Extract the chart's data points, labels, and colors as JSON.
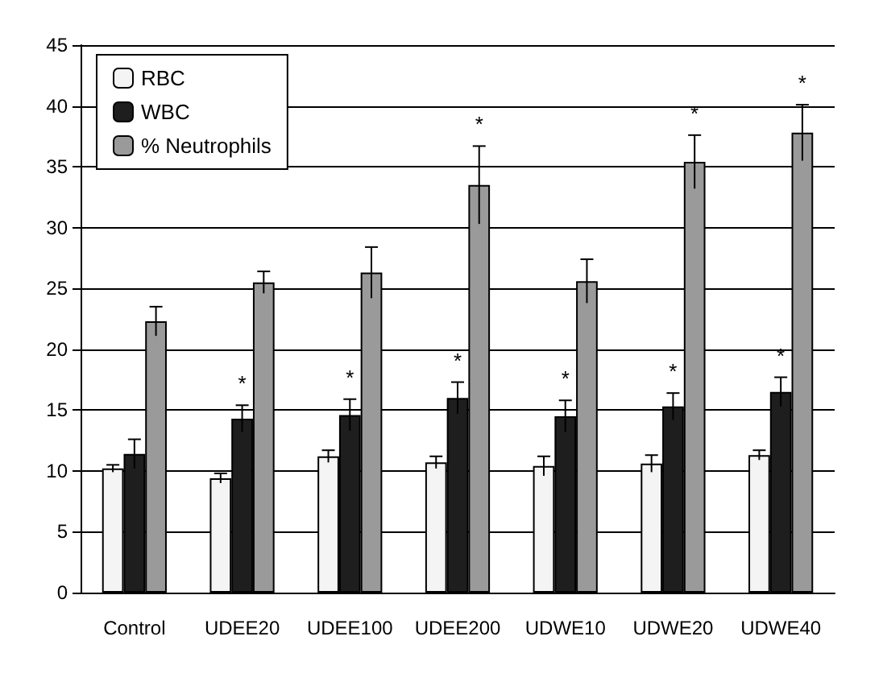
{
  "chart_data": {
    "type": "bar",
    "categories": [
      "Control",
      "UDEE20",
      "UDEE100",
      "UDEE200",
      "UDWE10",
      "UDWE20",
      "UDWE40"
    ],
    "series": [
      {
        "name": "RBC",
        "color": "#f4f4f4",
        "values": [
          10.2,
          9.4,
          11.2,
          10.7,
          10.4,
          10.6,
          11.3
        ],
        "errors": [
          0.3,
          0.4,
          0.5,
          0.5,
          0.8,
          0.7,
          0.4
        ]
      },
      {
        "name": "WBC",
        "color": "#1e1e1e",
        "values": [
          11.4,
          14.3,
          14.6,
          16.0,
          14.5,
          15.3,
          16.5
        ],
        "errors": [
          1.2,
          1.1,
          1.3,
          1.3,
          1.3,
          1.1,
          1.2
        ],
        "value_labels": [
          null,
          "*",
          "*",
          "*",
          "*",
          "*",
          "*"
        ]
      },
      {
        "name": "% Neutrophils",
        "color": "#9a9a9a",
        "values": [
          22.3,
          25.5,
          26.3,
          33.5,
          25.6,
          35.4,
          37.8
        ],
        "errors": [
          1.2,
          0.9,
          2.1,
          3.2,
          1.8,
          2.2,
          2.3
        ],
        "value_labels": [
          null,
          null,
          null,
          "*",
          null,
          "*",
          "*"
        ]
      }
    ],
    "ylim": [
      0,
      45
    ],
    "yticks": [
      0,
      5,
      10,
      15,
      20,
      25,
      30,
      35,
      40,
      45
    ],
    "grid": "y",
    "legend": "top left"
  }
}
